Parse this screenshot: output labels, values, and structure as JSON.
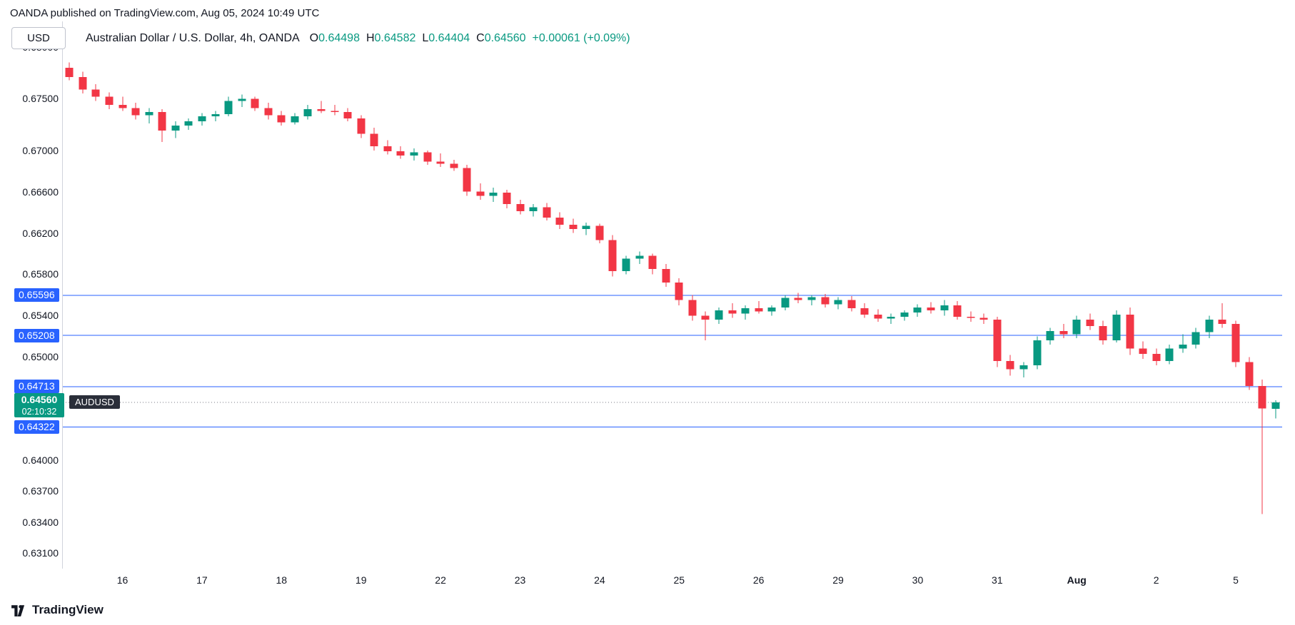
{
  "header": {
    "publisher_note": "OANDA published on TradingView.com, Aug 05, 2024 10:49 UTC",
    "unit_button": "USD",
    "legend": {
      "title": "Australian Dollar / U.S. Dollar, 4h, OANDA",
      "ohlc": [
        {
          "label": "O",
          "value": "0.64498"
        },
        {
          "label": "H",
          "value": "0.64582"
        },
        {
          "label": "L",
          "value": "0.64404"
        },
        {
          "label": "C",
          "value": "0.64560"
        }
      ],
      "change": "+0.00061 (+0.09%)"
    }
  },
  "colors": {
    "up": "#089981",
    "down": "#F23645",
    "level": "#2962FF",
    "price_line": "#787B86",
    "axis": "#D1D4DC",
    "text": "#131722",
    "label_dark_bg": "#2A2E39"
  },
  "chart_data": {
    "type": "candlestick",
    "symbol": "AUDUSD",
    "exchange": "OANDA",
    "interval": "4h",
    "price_range": {
      "top": 0.68,
      "bottom": 0.6295
    },
    "y_axis_labels": [
      "0.68000",
      "0.67500",
      "0.67000",
      "0.66600",
      "0.66200",
      "0.65800",
      "0.65400",
      "0.65000",
      "0.64000",
      "0.63700",
      "0.63400",
      "0.63100"
    ],
    "x_ticks": [
      {
        "label": "16",
        "index": 4
      },
      {
        "label": "17",
        "index": 10
      },
      {
        "label": "18",
        "index": 16
      },
      {
        "label": "19",
        "index": 22
      },
      {
        "label": "22",
        "index": 28
      },
      {
        "label": "23",
        "index": 34
      },
      {
        "label": "24",
        "index": 40
      },
      {
        "label": "25",
        "index": 46
      },
      {
        "label": "26",
        "index": 52
      },
      {
        "label": "29",
        "index": 58
      },
      {
        "label": "30",
        "index": 64
      },
      {
        "label": "31",
        "index": 70
      },
      {
        "label": "Aug",
        "index": 76,
        "bold": true
      },
      {
        "label": "2",
        "index": 82
      },
      {
        "label": "5",
        "index": 88
      }
    ],
    "levels": [
      0.65596,
      0.65208,
      0.64713,
      0.64322
    ],
    "last_price": {
      "price": 0.6456,
      "display": "0.64560",
      "countdown": "02:10:32",
      "symbol": "AUDUSD"
    },
    "candles": [
      [
        0.678,
        0.6785,
        0.6768,
        0.6771
      ],
      [
        0.6771,
        0.6776,
        0.6755,
        0.6759
      ],
      [
        0.6759,
        0.6764,
        0.6748,
        0.6752
      ],
      [
        0.6752,
        0.6756,
        0.674,
        0.6744
      ],
      [
        0.6744,
        0.6752,
        0.6738,
        0.6741
      ],
      [
        0.6741,
        0.6746,
        0.673,
        0.6734
      ],
      [
        0.6734,
        0.6741,
        0.6726,
        0.6737
      ],
      [
        0.6737,
        0.674,
        0.6708,
        0.6719
      ],
      [
        0.6719,
        0.6728,
        0.6712,
        0.6724
      ],
      [
        0.6724,
        0.6731,
        0.672,
        0.6728
      ],
      [
        0.6728,
        0.6736,
        0.6724,
        0.6733
      ],
      [
        0.6733,
        0.6738,
        0.6728,
        0.6735
      ],
      [
        0.6735,
        0.6752,
        0.6733,
        0.6748
      ],
      [
        0.6748,
        0.6754,
        0.6742,
        0.675
      ],
      [
        0.675,
        0.6752,
        0.6738,
        0.6741
      ],
      [
        0.6741,
        0.6746,
        0.673,
        0.6734
      ],
      [
        0.6734,
        0.6738,
        0.6724,
        0.6727
      ],
      [
        0.6727,
        0.6736,
        0.6725,
        0.6733
      ],
      [
        0.6733,
        0.6744,
        0.673,
        0.674
      ],
      [
        0.674,
        0.6748,
        0.6736,
        0.6738
      ],
      [
        0.6738,
        0.6744,
        0.6734,
        0.6737
      ],
      [
        0.6737,
        0.6741,
        0.6728,
        0.6731
      ],
      [
        0.6731,
        0.6734,
        0.6712,
        0.6716
      ],
      [
        0.6716,
        0.6722,
        0.67,
        0.6704
      ],
      [
        0.6704,
        0.671,
        0.6696,
        0.6699
      ],
      [
        0.6699,
        0.6704,
        0.6692,
        0.6695
      ],
      [
        0.6695,
        0.6702,
        0.669,
        0.6698
      ],
      [
        0.6698,
        0.67,
        0.6686,
        0.6689
      ],
      [
        0.6689,
        0.6697,
        0.6684,
        0.6687
      ],
      [
        0.6687,
        0.6691,
        0.668,
        0.6683
      ],
      [
        0.6683,
        0.6686,
        0.6656,
        0.666
      ],
      [
        0.666,
        0.6668,
        0.6652,
        0.6656
      ],
      [
        0.6656,
        0.6664,
        0.665,
        0.6659
      ],
      [
        0.6659,
        0.6662,
        0.6644,
        0.6648
      ],
      [
        0.6648,
        0.6652,
        0.6638,
        0.6641
      ],
      [
        0.6641,
        0.6648,
        0.6636,
        0.6645
      ],
      [
        0.6645,
        0.6649,
        0.6632,
        0.6635
      ],
      [
        0.6635,
        0.664,
        0.6624,
        0.6628
      ],
      [
        0.6628,
        0.6634,
        0.662,
        0.6624
      ],
      [
        0.6624,
        0.663,
        0.6618,
        0.6627
      ],
      [
        0.6627,
        0.6629,
        0.661,
        0.6613
      ],
      [
        0.6613,
        0.6618,
        0.6578,
        0.6583
      ],
      [
        0.6583,
        0.6598,
        0.658,
        0.6595
      ],
      [
        0.6595,
        0.6602,
        0.659,
        0.6598
      ],
      [
        0.6598,
        0.66,
        0.658,
        0.6585
      ],
      [
        0.6585,
        0.659,
        0.6568,
        0.6572
      ],
      [
        0.6572,
        0.6576,
        0.655,
        0.6555
      ],
      [
        0.6555,
        0.656,
        0.6535,
        0.654
      ],
      [
        0.654,
        0.6544,
        0.6516,
        0.6536
      ],
      [
        0.6536,
        0.6548,
        0.6532,
        0.6545
      ],
      [
        0.6545,
        0.6552,
        0.6538,
        0.6542
      ],
      [
        0.6542,
        0.655,
        0.6536,
        0.6547
      ],
      [
        0.6547,
        0.6554,
        0.6542,
        0.6544
      ],
      [
        0.6544,
        0.655,
        0.654,
        0.6548
      ],
      [
        0.6548,
        0.656,
        0.6545,
        0.6557
      ],
      [
        0.6557,
        0.6562,
        0.6552,
        0.6555
      ],
      [
        0.6555,
        0.656,
        0.655,
        0.6558
      ],
      [
        0.6558,
        0.6561,
        0.6548,
        0.6551
      ],
      [
        0.6551,
        0.6558,
        0.6546,
        0.6555
      ],
      [
        0.6555,
        0.6559,
        0.6544,
        0.6547
      ],
      [
        0.6547,
        0.6552,
        0.6538,
        0.6541
      ],
      [
        0.6541,
        0.6546,
        0.6534,
        0.6537
      ],
      [
        0.6537,
        0.6542,
        0.6532,
        0.6539
      ],
      [
        0.6539,
        0.6545,
        0.6535,
        0.6543
      ],
      [
        0.6543,
        0.6551,
        0.6539,
        0.6548
      ],
      [
        0.6548,
        0.6553,
        0.6542,
        0.6545
      ],
      [
        0.6545,
        0.6555,
        0.654,
        0.655
      ],
      [
        0.655,
        0.6554,
        0.6536,
        0.6539
      ],
      [
        0.6539,
        0.6544,
        0.6534,
        0.6538
      ],
      [
        0.6538,
        0.6542,
        0.6532,
        0.6536
      ],
      [
        0.6536,
        0.6539,
        0.649,
        0.6496
      ],
      [
        0.6496,
        0.6502,
        0.6482,
        0.6488
      ],
      [
        0.6488,
        0.6495,
        0.648,
        0.6492
      ],
      [
        0.6492,
        0.652,
        0.6488,
        0.6516
      ],
      [
        0.6516,
        0.6528,
        0.6512,
        0.6525
      ],
      [
        0.6525,
        0.6532,
        0.6518,
        0.6522
      ],
      [
        0.6522,
        0.654,
        0.6518,
        0.6536
      ],
      [
        0.6536,
        0.6542,
        0.6526,
        0.653
      ],
      [
        0.653,
        0.6535,
        0.6512,
        0.6516
      ],
      [
        0.6516,
        0.6545,
        0.6514,
        0.6541
      ],
      [
        0.6541,
        0.6548,
        0.6502,
        0.6508
      ],
      [
        0.6508,
        0.6515,
        0.6498,
        0.6503
      ],
      [
        0.6503,
        0.6508,
        0.6492,
        0.6496
      ],
      [
        0.6496,
        0.6512,
        0.6493,
        0.6508
      ],
      [
        0.6508,
        0.6522,
        0.6504,
        0.6512
      ],
      [
        0.6512,
        0.6528,
        0.6508,
        0.6524
      ],
      [
        0.6524,
        0.654,
        0.6518,
        0.6536
      ],
      [
        0.6536,
        0.6552,
        0.6528,
        0.6532
      ],
      [
        0.6532,
        0.6535,
        0.649,
        0.6495
      ],
      [
        0.6495,
        0.65,
        0.6468,
        0.6472
      ],
      [
        0.6472,
        0.6478,
        0.6348,
        0.645
      ],
      [
        0.64498,
        0.64582,
        0.64404,
        0.6456
      ]
    ]
  },
  "footer": {
    "brand": "TradingView"
  }
}
